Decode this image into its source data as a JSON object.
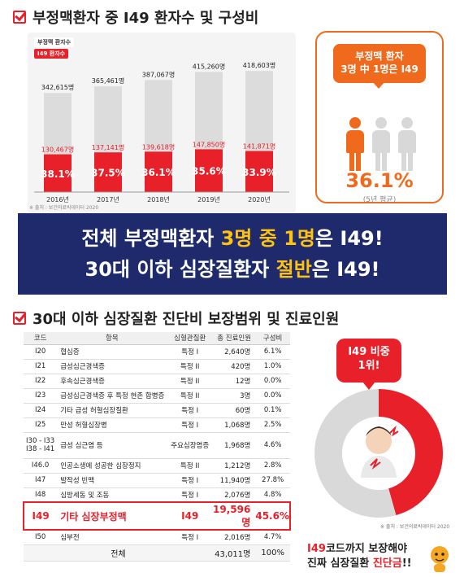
{
  "section1": {
    "title": "부정맥환자 중 I49 환자수 및 구성비"
  },
  "chart_data": {
    "type": "bar",
    "title": "",
    "categories": [
      "2016년",
      "2017년",
      "2018년",
      "2019년",
      "2020년"
    ],
    "series": [
      {
        "name": "부정맥 환자수",
        "values": [
          342615,
          365461,
          387067,
          415260,
          418603
        ],
        "labels": [
          "342,615명",
          "365,461명",
          "387,067명",
          "415,260명",
          "418,603명"
        ],
        "color": "#dcdcdc"
      },
      {
        "name": "I49 환자수",
        "values": [
          130467,
          137141,
          139618,
          147850,
          141871
        ],
        "labels": [
          "130,467명",
          "137,141명",
          "139,618명",
          "147,850명",
          "141,871명"
        ],
        "color": "#e8202a"
      }
    ],
    "ratios": [
      "38.1%",
      "37.5%",
      "36.1%",
      "35.6%",
      "33.9%"
    ],
    "ylim": [
      0,
      450000
    ],
    "legend": "top-left",
    "source": "※ 출처 : 보건의료빅데이터 2020"
  },
  "callout": {
    "title_line1": "부정맥 환자",
    "title_line2": "3명 中 1명은 I49",
    "percent": "36.1%",
    "note": "(5년 평균)",
    "colors": {
      "accent": "#f06a1e",
      "muted": "#d8d8d8"
    }
  },
  "banner": {
    "line1_a": "전체 부정맥환자 ",
    "line1_hl": "3명 중 1명",
    "line1_b": "은 I49!",
    "line2_a": "30대 이하 심장질환자 ",
    "line2_hl": "절반",
    "line2_b": "은 I49!"
  },
  "section2": {
    "title": "30대 이하 심장질환 진단비 보장범위 및 진료인원"
  },
  "table": {
    "headers": [
      "코드",
      "항목",
      "심혈관질환",
      "총 진료인원",
      "구성비"
    ],
    "rows": [
      {
        "code": "I20",
        "item": "협심증",
        "type": "특정 I",
        "count": "2,640명",
        "ratio": "6.1%"
      },
      {
        "code": "I21",
        "item": "급성심근경색증",
        "type": "특정 II",
        "count": "420명",
        "ratio": "1.0%"
      },
      {
        "code": "I22",
        "item": "후속심근경색증",
        "type": "특정 II",
        "count": "12명",
        "ratio": "0.0%"
      },
      {
        "code": "I23",
        "item": "급성심근경색증 후 특정 현존 합병증",
        "type": "특정 II",
        "count": "3명",
        "ratio": "0.0%"
      },
      {
        "code": "I24",
        "item": "기타 급성 허혈심장질환",
        "type": "특정 I",
        "count": "60명",
        "ratio": "0.1%"
      },
      {
        "code": "I25",
        "item": "만성 허혈심장병",
        "type": "특정 I",
        "count": "1,068명",
        "ratio": "2.5%"
      },
      {
        "code": "I30 - I33\nI38 - I41",
        "item": "급성 심근염 등",
        "type": "주요심장염증",
        "count": "1,968명",
        "ratio": "4.6%"
      },
      {
        "code": "I46.0",
        "item": "인공소생에 성공한 심장정지",
        "type": "특정 II",
        "count": "1,212명",
        "ratio": "2.8%"
      },
      {
        "code": "I47",
        "item": "발작성 빈맥",
        "type": "특정 I",
        "count": "11,940명",
        "ratio": "27.8%"
      },
      {
        "code": "I48",
        "item": "심방세동 및 조동",
        "type": "특정 I",
        "count": "2,076명",
        "ratio": "4.8%"
      },
      {
        "code": "I49",
        "item": "기타 심장부정맥",
        "type": "I49",
        "count": "19,596명",
        "ratio": "45.6%"
      },
      {
        "code": "I50",
        "item": "심부전",
        "type": "특정 I",
        "count": "2,016명",
        "ratio": "4.7%"
      }
    ],
    "total": {
      "label": "전체",
      "count": "43,011명",
      "ratio": "100%"
    }
  },
  "donut": {
    "badge_line1": "I49 비중",
    "badge_line2": "1위!",
    "share": 0.456,
    "colors": {
      "main": "#e8202a",
      "rest": "#d9d9d9"
    },
    "source": "※ 출처 : 보건의료빅데이터 2020"
  },
  "footer": {
    "line1_a": "I49",
    "line1_b": "코드까지 보장해야",
    "line2_a": "진짜 심장질환 ",
    "line2_hl": "진단금",
    "line2_b": "!!"
  }
}
